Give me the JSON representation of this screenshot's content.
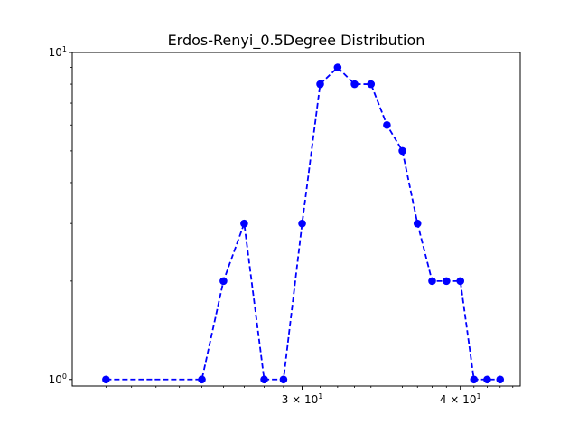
{
  "chart_data": {
    "type": "line",
    "title": "Erdos-Renyi_0.5Degree  Distribution",
    "xlabel": "",
    "ylabel": "",
    "x_scale": "log",
    "y_scale": "log",
    "xlim": [
      19.75,
      44.6
    ],
    "ylim": [
      0.955,
      10
    ],
    "grid": false,
    "x_ticks": [
      {
        "value": 30,
        "base": "3",
        "exp": "1"
      },
      {
        "value": 40,
        "base": "4",
        "exp": "1"
      }
    ],
    "y_ticks": [
      {
        "value": 1,
        "base": "10",
        "exp": "0"
      },
      {
        "value": 10,
        "base": "10",
        "exp": "1"
      }
    ],
    "series": [
      {
        "color": "#0000ff",
        "line_style": "dashed",
        "marker": "circle",
        "x": [
          21,
          25,
          26,
          27,
          28,
          29,
          30,
          31,
          32,
          33,
          34,
          35,
          36,
          37,
          38,
          39,
          40,
          41,
          42,
          43
        ],
        "y": [
          1,
          1,
          2,
          3,
          1,
          1,
          3,
          8,
          9,
          8,
          8,
          6,
          5,
          3,
          2,
          2,
          2,
          1,
          1,
          1
        ]
      }
    ]
  }
}
